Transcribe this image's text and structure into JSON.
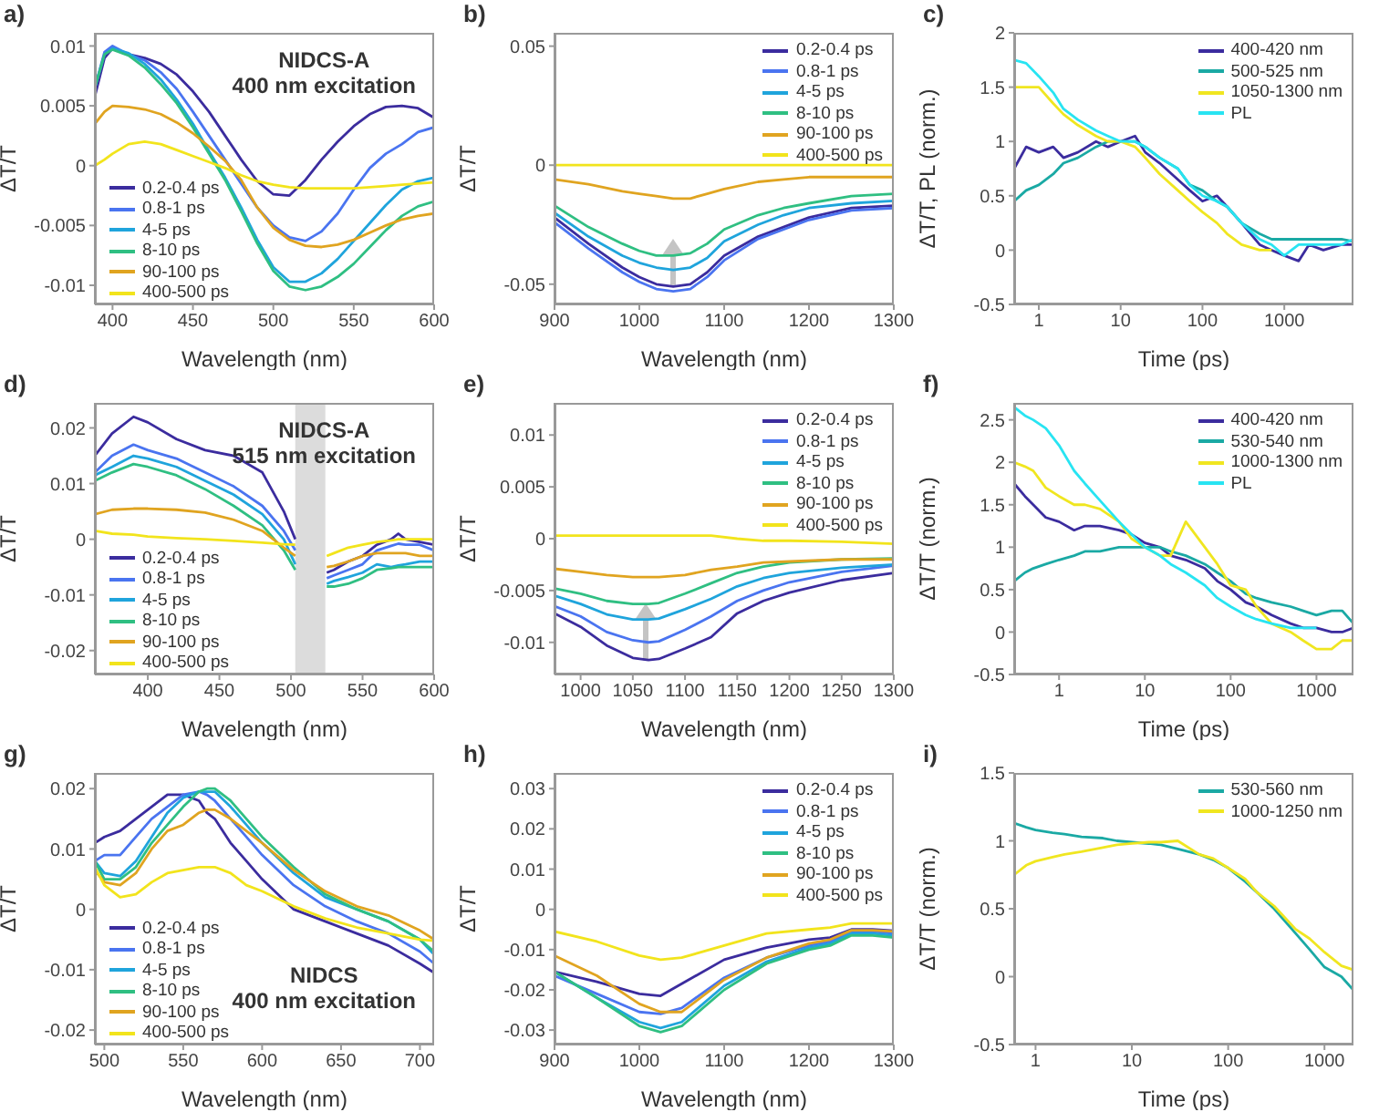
{
  "chart_data": [
    {
      "type": "line",
      "title": "a)",
      "xlabel": "Wavelength (nm)",
      "ylabel": "ΔT/T",
      "annotations": [
        "NIDCS-A",
        "400 nm excitation"
      ],
      "legend": "bottom left",
      "xlim": [
        389,
        600
      ],
      "ylim": [
        -0.0116,
        0.0111
      ],
      "xticks": [
        400,
        450,
        500,
        550,
        600
      ],
      "yticks": [
        -0.01,
        -0.005,
        0,
        0.005,
        0.01
      ],
      "x": [
        389,
        395,
        400,
        410,
        420,
        430,
        440,
        450,
        460,
        470,
        480,
        490,
        500,
        510,
        520,
        530,
        540,
        550,
        560,
        570,
        580,
        590,
        600
      ],
      "series": [
        {
          "name": "0.2-0.4 ps",
          "color": "#3b2c9e",
          "values": [
            0.0058,
            0.009,
            0.0098,
            0.0093,
            0.009,
            0.0085,
            0.0076,
            0.0062,
            0.0045,
            0.0025,
            0.0005,
            -0.0013,
            -0.0024,
            -0.0025,
            -0.0012,
            0.0005,
            0.002,
            0.0033,
            0.0043,
            0.0049,
            0.005,
            0.0048,
            0.004
          ]
        },
        {
          "name": "0.8-1 ps",
          "color": "#4a74f0",
          "values": [
            0.0065,
            0.0095,
            0.01,
            0.0093,
            0.0088,
            0.0078,
            0.0064,
            0.0045,
            0.0025,
            0.0005,
            -0.0015,
            -0.0035,
            -0.005,
            -0.006,
            -0.0063,
            -0.0055,
            -0.004,
            -0.002,
            -0.0002,
            0.001,
            0.0018,
            0.0028,
            0.0032
          ]
        },
        {
          "name": "4-5 ps",
          "color": "#1fa4dc",
          "values": [
            0.0065,
            0.0093,
            0.0098,
            0.0094,
            0.0085,
            0.0072,
            0.0055,
            0.0035,
            0.0012,
            -0.001,
            -0.0035,
            -0.0062,
            -0.0085,
            -0.0097,
            -0.0097,
            -0.009,
            -0.0078,
            -0.0063,
            -0.0048,
            -0.0033,
            -0.002,
            -0.0013,
            -0.001
          ]
        },
        {
          "name": "8-10 ps",
          "color": "#2fbf82",
          "values": [
            0.0065,
            0.0093,
            0.0097,
            0.0092,
            0.0082,
            0.0068,
            0.0052,
            0.0032,
            0.001,
            -0.0012,
            -0.0038,
            -0.0065,
            -0.0088,
            -0.0101,
            -0.0104,
            -0.0101,
            -0.0093,
            -0.0082,
            -0.0068,
            -0.0054,
            -0.0042,
            -0.0034,
            -0.003
          ]
        },
        {
          "name": "90-100 ps",
          "color": "#e0a420",
          "values": [
            0.0035,
            0.0045,
            0.005,
            0.0049,
            0.0047,
            0.0043,
            0.0036,
            0.0027,
            0.0016,
            0.0004,
            -0.0012,
            -0.0035,
            -0.0052,
            -0.0062,
            -0.0067,
            -0.0068,
            -0.0066,
            -0.0062,
            -0.0056,
            -0.005,
            -0.0045,
            -0.0042,
            -0.004
          ]
        },
        {
          "name": "400-500 ps",
          "color": "#f2e41c",
          "values": [
            0,
            0.0005,
            0.001,
            0.0018,
            0.002,
            0.0018,
            0.0013,
            0.0008,
            0.0003,
            -0.0002,
            -0.0008,
            -0.0013,
            -0.0016,
            -0.0018,
            -0.0019,
            -0.0019,
            -0.0019,
            -0.0019,
            -0.0018,
            -0.0017,
            -0.0016,
            -0.0015,
            -0.0014
          ]
        }
      ]
    },
    {
      "type": "line",
      "title": "b)",
      "xlabel": "Wavelength (nm)",
      "ylabel": "ΔT/T",
      "legend": "top right",
      "xlim": [
        900,
        1300
      ],
      "ylim": [
        -0.0585,
        0.0556
      ],
      "xticks": [
        900,
        1000,
        1100,
        1200,
        1300
      ],
      "yticks": [
        -0.05,
        0,
        0.05
      ],
      "x": [
        900,
        940,
        980,
        1000,
        1020,
        1040,
        1060,
        1080,
        1100,
        1140,
        1170,
        1200,
        1250,
        1300
      ],
      "series": [
        {
          "name": "0.2-0.4 ps",
          "color": "#3b2c9e",
          "values": [
            -0.022,
            -0.033,
            -0.043,
            -0.047,
            -0.05,
            -0.051,
            -0.05,
            -0.045,
            -0.038,
            -0.03,
            -0.026,
            -0.022,
            -0.018,
            -0.017
          ]
        },
        {
          "name": "0.8-1 ps",
          "color": "#4a74f0",
          "values": [
            -0.024,
            -0.035,
            -0.045,
            -0.049,
            -0.052,
            -0.053,
            -0.052,
            -0.047,
            -0.04,
            -0.031,
            -0.027,
            -0.023,
            -0.019,
            -0.018
          ]
        },
        {
          "name": "4-5 ps",
          "color": "#1fa4dc",
          "values": [
            -0.02,
            -0.03,
            -0.038,
            -0.041,
            -0.043,
            -0.044,
            -0.043,
            -0.039,
            -0.032,
            -0.025,
            -0.021,
            -0.018,
            -0.016,
            -0.015
          ]
        },
        {
          "name": "8-10 ps",
          "color": "#2fbf82",
          "values": [
            -0.017,
            -0.026,
            -0.033,
            -0.036,
            -0.038,
            -0.038,
            -0.037,
            -0.033,
            -0.027,
            -0.021,
            -0.018,
            -0.016,
            -0.013,
            -0.012
          ]
        },
        {
          "name": "90-100 ps",
          "color": "#e0a420",
          "values": [
            -0.006,
            -0.008,
            -0.011,
            -0.012,
            -0.013,
            -0.014,
            -0.014,
            -0.012,
            -0.01,
            -0.007,
            -0.006,
            -0.005,
            -0.005,
            -0.005
          ]
        },
        {
          "name": "400-500 ps",
          "color": "#f2e41c",
          "values": [
            0,
            0,
            0,
            0,
            0,
            0,
            0,
            0,
            0,
            0,
            0,
            0,
            0,
            0
          ]
        }
      ]
    },
    {
      "type": "line",
      "title": "c)",
      "xlabel": "Time (ps)",
      "ylabel": "ΔT/T, PL (norm.)",
      "legend": "top right",
      "log": "x",
      "xlim": [
        0.5,
        7000
      ],
      "ylim": [
        -0.5,
        2
      ],
      "xticks": [
        1,
        10,
        100,
        1000
      ],
      "yticks": [
        -0.5,
        0,
        0.5,
        1,
        1.5,
        2
      ],
      "x": [
        0.5,
        0.7,
        1,
        1.5,
        2,
        3,
        5,
        7,
        10,
        15,
        20,
        30,
        50,
        70,
        100,
        150,
        200,
        300,
        500,
        700,
        1000,
        1500,
        2000,
        3000,
        5000,
        7000
      ],
      "series": [
        {
          "name": "400-420 nm",
          "color": "#3b2c9e",
          "values": [
            0.75,
            0.95,
            0.9,
            0.95,
            0.85,
            0.9,
            1.0,
            0.95,
            1.0,
            1.05,
            0.9,
            0.8,
            0.65,
            0.55,
            0.45,
            0.5,
            0.4,
            0.25,
            0.05,
            0.0,
            -0.05,
            -0.1,
            0.05,
            0.0,
            0.05,
            0.05
          ]
        },
        {
          "name": "500-525 nm",
          "color": "#1aa9a4",
          "values": [
            0.45,
            0.55,
            0.6,
            0.7,
            0.8,
            0.85,
            0.95,
            1.0,
            1.0,
            1.0,
            0.95,
            0.85,
            0.75,
            0.6,
            0.55,
            0.45,
            0.4,
            0.25,
            0.15,
            0.1,
            0.1,
            0.1,
            0.1,
            0.1,
            0.1,
            0.08
          ]
        },
        {
          "name": "1050-1300 nm",
          "color": "#f0e620",
          "values": [
            1.5,
            1.5,
            1.5,
            1.35,
            1.25,
            1.15,
            1.05,
            1.0,
            1.0,
            0.95,
            0.85,
            0.7,
            0.55,
            0.45,
            0.35,
            0.25,
            0.15,
            0.05,
            0.0,
            0.0,
            null,
            null,
            null,
            null,
            null,
            null
          ]
        },
        {
          "name": "PL",
          "color": "#28e4f2",
          "values": [
            1.75,
            1.72,
            1.6,
            1.45,
            1.3,
            1.2,
            1.1,
            1.05,
            1.0,
            1.0,
            0.95,
            0.85,
            0.75,
            0.6,
            0.5,
            0.45,
            0.4,
            0.25,
            0.1,
            0.05,
            -0.05,
            0.05,
            0.05,
            0.05,
            0.05,
            0.1
          ]
        }
      ]
    },
    {
      "type": "line",
      "title": "d)",
      "xlabel": "Wavelength (nm)",
      "ylabel": "ΔT/T",
      "annotations": [
        "NIDCS-A",
        "515 nm excitation"
      ],
      "legend": "bottom left",
      "xlim": [
        363,
        600
      ],
      "ylim": [
        -0.0243,
        0.0245
      ],
      "xticks": [
        400,
        450,
        500,
        550,
        600
      ],
      "yticks": [
        -0.02,
        -0.01,
        0,
        0.01,
        0.02
      ],
      "bands": [
        {
          "axis": "x",
          "from": 503,
          "to": 524,
          "color": "#dcdcdc"
        }
      ],
      "x": [
        363,
        375,
        390,
        400,
        420,
        440,
        460,
        480,
        495,
        503,
        514,
        525,
        530,
        540,
        550,
        560,
        570,
        575,
        580,
        590,
        600
      ],
      "series": [
        {
          "name": "0.2-0.4 ps",
          "color": "#3b2c9e",
          "values": [
            0.015,
            0.019,
            0.022,
            0.021,
            0.018,
            0.016,
            0.015,
            0.012,
            0.005,
            0.0,
            null,
            -0.006,
            -0.0055,
            -0.004,
            -0.003,
            -0.001,
            0.0,
            0.001,
            0.0,
            -0.0005,
            -0.001
          ]
        },
        {
          "name": "0.8-1 ps",
          "color": "#4a74f0",
          "values": [
            0.012,
            0.015,
            0.017,
            0.016,
            0.0145,
            0.012,
            0.0095,
            0.006,
            0.0015,
            -0.002,
            null,
            -0.007,
            -0.0065,
            -0.0055,
            -0.0045,
            -0.002,
            -0.0012,
            -0.0008,
            -0.001,
            -0.001,
            -0.002
          ]
        },
        {
          "name": "4-5 ps",
          "color": "#1fa4dc",
          "values": [
            0.0115,
            0.013,
            0.015,
            0.0145,
            0.013,
            0.0105,
            0.008,
            0.0045,
            0.0,
            -0.0045,
            null,
            -0.008,
            -0.0075,
            -0.0068,
            -0.006,
            -0.0045,
            -0.005,
            -0.0047,
            -0.0045,
            -0.004,
            -0.004
          ]
        },
        {
          "name": "8-10 ps",
          "color": "#2fbf82",
          "values": [
            0.0105,
            0.012,
            0.0135,
            0.013,
            0.0115,
            0.009,
            0.006,
            0.0025,
            -0.002,
            -0.0055,
            null,
            -0.0085,
            -0.0085,
            -0.008,
            -0.007,
            -0.0055,
            -0.0052,
            -0.005,
            -0.005,
            -0.005,
            -0.005
          ]
        },
        {
          "name": "90-100 ps",
          "color": "#e0a420",
          "values": [
            0.0045,
            0.0053,
            0.0055,
            0.0055,
            0.0053,
            0.0048,
            0.0035,
            0.0015,
            -0.0015,
            -0.003,
            null,
            -0.005,
            -0.0048,
            -0.004,
            -0.003,
            -0.0025,
            -0.0025,
            -0.0025,
            -0.0025,
            -0.003,
            -0.003
          ]
        },
        {
          "name": "400-500 ps",
          "color": "#f2e41c",
          "values": [
            0.0015,
            0.001,
            0.0008,
            0.0005,
            0.0002,
            0.0,
            -0.0003,
            -0.0006,
            -0.0009,
            -0.001,
            null,
            -0.003,
            -0.0025,
            -0.0015,
            -0.001,
            -0.0005,
            -0.0002,
            0.0,
            0.0,
            0.0,
            0.0
          ]
        }
      ]
    },
    {
      "type": "line",
      "title": "e)",
      "xlabel": "Wavelength (nm)",
      "ylabel": "ΔT/T",
      "legend": "top right",
      "xlim": [
        975,
        1300
      ],
      "ylim": [
        -0.0131,
        0.0131
      ],
      "xticks": [
        1000,
        1050,
        1100,
        1150,
        1200,
        1250,
        1300
      ],
      "yticks": [
        -0.01,
        -0.005,
        0,
        0.005,
        0.01
      ],
      "x": [
        975,
        1000,
        1025,
        1050,
        1065,
        1075,
        1100,
        1125,
        1150,
        1175,
        1200,
        1250,
        1300
      ],
      "series": [
        {
          "name": "0.2-0.4 ps",
          "color": "#3b2c9e",
          "values": [
            -0.0072,
            -0.0085,
            -0.0103,
            -0.0115,
            -0.0117,
            -0.0116,
            -0.0106,
            -0.0095,
            -0.0072,
            -0.006,
            -0.0052,
            -0.004,
            -0.0033
          ]
        },
        {
          "name": "0.8-1 ps",
          "color": "#4a74f0",
          "values": [
            -0.0065,
            -0.0075,
            -0.009,
            -0.0098,
            -0.01,
            -0.0099,
            -0.0088,
            -0.0075,
            -0.006,
            -0.005,
            -0.0042,
            -0.0032,
            -0.0026
          ]
        },
        {
          "name": "4-5 ps",
          "color": "#1fa4dc",
          "values": [
            -0.0055,
            -0.0063,
            -0.0073,
            -0.0078,
            -0.0078,
            -0.0077,
            -0.0068,
            -0.0058,
            -0.0046,
            -0.0038,
            -0.0033,
            -0.0028,
            -0.0025
          ]
        },
        {
          "name": "8-10 ps",
          "color": "#2fbf82",
          "values": [
            -0.0048,
            -0.0053,
            -0.006,
            -0.0063,
            -0.0063,
            -0.0062,
            -0.0053,
            -0.0043,
            -0.0033,
            -0.0027,
            -0.0023,
            -0.002,
            -0.0019
          ]
        },
        {
          "name": "90-100 ps",
          "color": "#e0a420",
          "values": [
            -0.0029,
            -0.0032,
            -0.0035,
            -0.0037,
            -0.0037,
            -0.0037,
            -0.0035,
            -0.003,
            -0.0027,
            -0.0023,
            -0.0022,
            -0.002,
            -0.002
          ]
        },
        {
          "name": "400-500 ps",
          "color": "#f2e41c",
          "values": [
            0.0003,
            0.0003,
            0.0003,
            0.0003,
            0.0003,
            0.0003,
            0.0003,
            0.0003,
            0.0,
            -0.0002,
            -0.0002,
            -0.0003,
            -0.0005
          ]
        }
      ]
    },
    {
      "type": "line",
      "title": "f)",
      "xlabel": "Time (ps)",
      "ylabel": "ΔT/T (norm.)",
      "legend": "top right",
      "log": "x",
      "xlim": [
        0.3,
        2700
      ],
      "ylim": [
        -0.5,
        2.7
      ],
      "xticks": [
        1,
        10,
        100,
        1000
      ],
      "yticks": [
        -0.5,
        0,
        0.5,
        1,
        1.5,
        2,
        2.5
      ],
      "x": [
        0.3,
        0.4,
        0.5,
        0.7,
        1,
        1.5,
        2,
        3,
        5,
        7,
        10,
        15,
        20,
        30,
        50,
        70,
        100,
        150,
        200,
        300,
        500,
        700,
        1000,
        1500,
        2000,
        2700
      ],
      "series": [
        {
          "name": "400-420 nm",
          "color": "#3b2c9e",
          "values": [
            1.75,
            1.6,
            1.5,
            1.35,
            1.3,
            1.2,
            1.25,
            1.25,
            1.2,
            1.15,
            1.05,
            1.0,
            0.9,
            0.85,
            0.75,
            0.6,
            0.5,
            0.35,
            0.3,
            0.2,
            0.1,
            0.05,
            0.05,
            0.0,
            0.0,
            0.05
          ]
        },
        {
          "name": "530-540 nm",
          "color": "#1aa9a4",
          "values": [
            0.6,
            0.7,
            0.75,
            0.8,
            0.85,
            0.9,
            0.95,
            0.95,
            1.0,
            1.0,
            1.0,
            1.0,
            0.95,
            0.9,
            0.8,
            0.7,
            0.6,
            0.45,
            0.4,
            0.35,
            0.3,
            0.25,
            0.2,
            0.25,
            0.25,
            0.1
          ]
        },
        {
          "name": "1000-1300 nm",
          "color": "#f0e620",
          "values": [
            2.0,
            1.95,
            1.9,
            1.7,
            1.6,
            1.5,
            1.5,
            1.45,
            1.3,
            1.1,
            1.0,
            0.9,
            0.9,
            1.3,
            1.0,
            0.8,
            0.55,
            0.5,
            0.3,
            0.1,
            0.0,
            -0.1,
            -0.2,
            -0.2,
            -0.1,
            -0.1
          ]
        },
        {
          "name": "PL",
          "color": "#28e4f2",
          "values": [
            2.65,
            2.55,
            2.5,
            2.4,
            2.2,
            1.9,
            1.75,
            1.55,
            1.3,
            1.15,
            1.0,
            0.9,
            0.8,
            0.7,
            0.55,
            0.4,
            0.3,
            0.2,
            0.15,
            0.1,
            0.05,
            0.05,
            0.05,
            null,
            null,
            null
          ]
        }
      ]
    },
    {
      "type": "line",
      "title": "g)",
      "xlabel": "Wavelength (nm)",
      "ylabel": "ΔT/T",
      "annotations": [
        "NIDCS",
        "400 nm excitation"
      ],
      "legend": "bottom left",
      "xlim": [
        494,
        709
      ],
      "ylim": [
        -0.0224,
        0.0226
      ],
      "xticks": [
        500,
        550,
        600,
        650,
        700
      ],
      "yticks": [
        -0.02,
        -0.01,
        0,
        0.01,
        0.02
      ],
      "x": [
        494,
        500,
        510,
        520,
        530,
        540,
        550,
        560,
        565,
        570,
        580,
        590,
        600,
        620,
        640,
        660,
        680,
        700,
        709
      ],
      "series": [
        {
          "name": "0.2-0.4 ps",
          "color": "#3b2c9e",
          "values": [
            0.011,
            0.012,
            0.013,
            0.015,
            0.017,
            0.019,
            0.019,
            0.018,
            0.016,
            0.015,
            0.011,
            0.008,
            0.005,
            0.0,
            -0.002,
            -0.004,
            -0.006,
            -0.009,
            -0.0105
          ]
        },
        {
          "name": "0.8-1 ps",
          "color": "#4a74f0",
          "values": [
            0.008,
            0.009,
            0.009,
            0.012,
            0.015,
            0.017,
            0.019,
            0.0195,
            0.019,
            0.018,
            0.015,
            0.012,
            0.009,
            0.004,
            0.0005,
            -0.002,
            -0.004,
            -0.007,
            -0.009
          ]
        },
        {
          "name": "4-5 ps",
          "color": "#1fa4dc",
          "values": [
            0.008,
            0.006,
            0.0055,
            0.008,
            0.012,
            0.016,
            0.0185,
            0.0195,
            0.0195,
            0.0195,
            0.017,
            0.014,
            0.011,
            0.006,
            0.002,
            0.0,
            -0.002,
            -0.005,
            -0.0075
          ]
        },
        {
          "name": "8-10 ps",
          "color": "#2fbf82",
          "values": [
            0.008,
            0.005,
            0.005,
            0.007,
            0.011,
            0.014,
            0.017,
            0.0195,
            0.02,
            0.02,
            0.018,
            0.015,
            0.012,
            0.007,
            0.0025,
            0.0,
            -0.002,
            -0.005,
            -0.007
          ]
        },
        {
          "name": "90-100 ps",
          "color": "#e0a420",
          "values": [
            0.0065,
            0.0045,
            0.004,
            0.006,
            0.01,
            0.013,
            0.014,
            0.016,
            0.0165,
            0.0165,
            0.015,
            0.013,
            0.011,
            0.0065,
            0.003,
            0.0005,
            -0.001,
            -0.0035,
            -0.005
          ]
        },
        {
          "name": "400-500 ps",
          "color": "#f2e41c",
          "values": [
            0.007,
            0.004,
            0.002,
            0.0025,
            0.0045,
            0.006,
            0.0065,
            0.007,
            0.007,
            0.007,
            0.006,
            0.004,
            0.003,
            0.0005,
            -0.0015,
            -0.003,
            -0.004,
            -0.005,
            -0.0052
          ]
        }
      ]
    },
    {
      "type": "line",
      "title": "h)",
      "xlabel": "Wavelength (nm)",
      "ylabel": "ΔT/T",
      "legend": "top right",
      "xlim": [
        900,
        1300
      ],
      "ylim": [
        -0.0336,
        0.0339
      ],
      "xticks": [
        900,
        1000,
        1100,
        1200,
        1300
      ],
      "yticks": [
        -0.03,
        -0.02,
        -0.01,
        0,
        0.01,
        0.02,
        0.03
      ],
      "x": [
        900,
        950,
        1000,
        1025,
        1050,
        1100,
        1150,
        1200,
        1225,
        1250,
        1275,
        1300
      ],
      "series": [
        {
          "name": "0.2-0.4 ps",
          "color": "#3b2c9e",
          "values": [
            -0.0155,
            -0.018,
            -0.021,
            -0.0215,
            -0.0185,
            -0.0125,
            -0.0095,
            -0.0075,
            -0.007,
            -0.005,
            -0.005,
            -0.0053
          ]
        },
        {
          "name": "0.8-1 ps",
          "color": "#4a74f0",
          "values": [
            -0.0165,
            -0.021,
            -0.0255,
            -0.026,
            -0.0245,
            -0.017,
            -0.012,
            -0.009,
            -0.008,
            -0.0055,
            -0.0055,
            -0.006
          ]
        },
        {
          "name": "4-5 ps",
          "color": "#1fa4dc",
          "values": [
            -0.0155,
            -0.022,
            -0.028,
            -0.0295,
            -0.028,
            -0.019,
            -0.013,
            -0.0095,
            -0.0085,
            -0.006,
            -0.006,
            -0.0065
          ]
        },
        {
          "name": "8-10 ps",
          "color": "#2fbf82",
          "values": [
            -0.0155,
            -0.022,
            -0.029,
            -0.0305,
            -0.029,
            -0.02,
            -0.0135,
            -0.01,
            -0.009,
            -0.0065,
            -0.0065,
            -0.007
          ]
        },
        {
          "name": "90-100 ps",
          "color": "#e0a420",
          "values": [
            -0.0115,
            -0.0165,
            -0.0235,
            -0.0255,
            -0.0255,
            -0.0175,
            -0.012,
            -0.0085,
            -0.0075,
            -0.0052,
            -0.0052,
            -0.0055
          ]
        },
        {
          "name": "400-500 ps",
          "color": "#f2e41c",
          "values": [
            -0.0055,
            -0.008,
            -0.0115,
            -0.0125,
            -0.012,
            -0.009,
            -0.006,
            -0.005,
            -0.0045,
            -0.0035,
            -0.0035,
            -0.0035
          ]
        }
      ]
    },
    {
      "type": "line",
      "title": "i)",
      "xlabel": "Time (ps)",
      "ylabel": "ΔT/T (norm.)",
      "legend": "top right",
      "log": "x",
      "xlim": [
        0.6,
        2000
      ],
      "ylim": [
        -0.5,
        1.5
      ],
      "xticks": [
        1,
        10,
        100,
        1000
      ],
      "yticks": [
        -0.5,
        0,
        0.5,
        1,
        1.5
      ],
      "x": [
        0.6,
        0.8,
        1,
        1.5,
        2,
        3,
        5,
        7,
        10,
        15,
        20,
        30,
        50,
        70,
        100,
        150,
        200,
        300,
        500,
        700,
        1000,
        1500,
        2000
      ],
      "series": [
        {
          "name": "530-560 nm",
          "color": "#1aa9a4",
          "values": [
            1.13,
            1.1,
            1.08,
            1.06,
            1.05,
            1.03,
            1.02,
            1.0,
            0.99,
            0.98,
            0.97,
            0.94,
            0.9,
            0.86,
            0.8,
            0.7,
            0.62,
            0.5,
            0.32,
            0.2,
            0.07,
            0.0,
            -0.1
          ]
        },
        {
          "name": "1000-1250 nm",
          "color": "#f0e620",
          "values": [
            0.75,
            0.82,
            0.85,
            0.88,
            0.9,
            0.92,
            0.95,
            0.97,
            0.98,
            0.99,
            0.99,
            1.0,
            0.9,
            0.87,
            0.8,
            0.72,
            0.62,
            0.52,
            0.35,
            0.28,
            0.18,
            0.08,
            0.05
          ]
        }
      ]
    }
  ]
}
